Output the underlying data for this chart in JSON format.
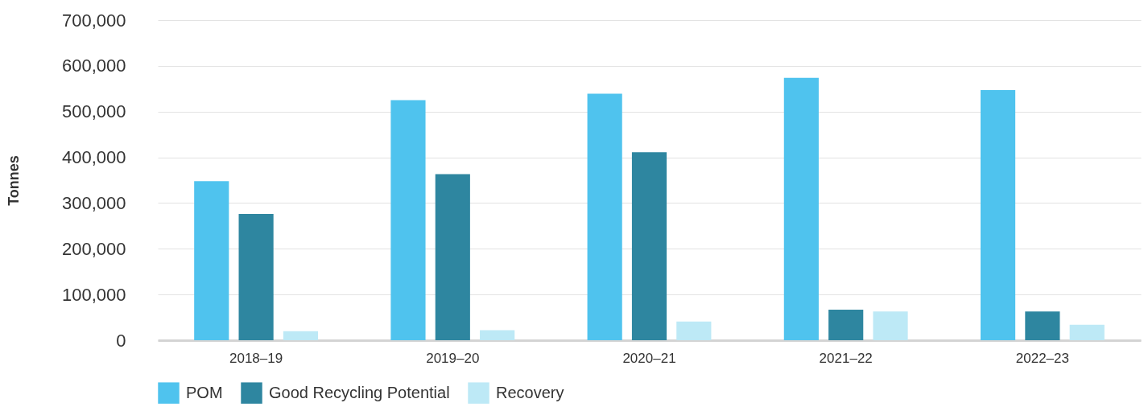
{
  "chart_data": {
    "type": "bar",
    "ylabel": "Tonnes",
    "categories": [
      "2018–19",
      "2019–20",
      "2020–21",
      "2021–22",
      "2022–23"
    ],
    "series": [
      {
        "name": "POM",
        "color": "#4fc3ee",
        "values": [
          348000,
          525000,
          539000,
          574000,
          547000
        ]
      },
      {
        "name": "Good Recycling Potential",
        "color": "#2e86a0",
        "values": [
          276000,
          363000,
          411000,
          67000,
          63000
        ]
      },
      {
        "name": "Recovery",
        "color": "#bde9f6",
        "values": [
          20000,
          22000,
          41000,
          63000,
          34000
        ]
      }
    ],
    "ylim": [
      0,
      700000
    ],
    "yticks": [
      0,
      {
        "value": 100000,
        "label": "100,000"
      },
      {
        "value": 200000,
        "label": "200,000"
      },
      {
        "value": 300000,
        "label": "300,000"
      },
      {
        "value": 400000,
        "label": "400,000"
      },
      {
        "value": 500000,
        "label": "500,000"
      },
      {
        "value": 600000,
        "label": "600,000"
      },
      {
        "value": 700000,
        "label": "700,000"
      }
    ],
    "grid": "y",
    "legend": "bottom"
  }
}
